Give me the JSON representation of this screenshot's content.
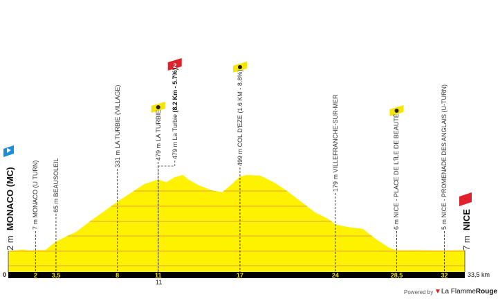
{
  "chart_data": {
    "type": "area",
    "xunit": "km",
    "xlim": [
      0,
      33.5
    ],
    "x_end_label": "33,5 km",
    "y_zero_label": "0",
    "ticks": [
      {
        "km": 2,
        "label": "2"
      },
      {
        "km": 3.5,
        "label": "3,5"
      },
      {
        "km": 8,
        "label": "8"
      },
      {
        "km": 11,
        "label": "11"
      },
      {
        "km": 17,
        "label": "17"
      },
      {
        "km": 24,
        "label": "24"
      },
      {
        "km": 28.5,
        "label": "28,5"
      },
      {
        "km": 32,
        "label": "32"
      }
    ],
    "sub_tick": {
      "km": 11,
      "label": "11"
    },
    "profile": [
      [
        0,
        2
      ],
      [
        0.5,
        5
      ],
      [
        1,
        10
      ],
      [
        1.5,
        5
      ],
      [
        2,
        7
      ],
      [
        2.7,
        7
      ],
      [
        3.5,
        65
      ],
      [
        4.5,
        110
      ],
      [
        5,
        130
      ],
      [
        6,
        200
      ],
      [
        7,
        265
      ],
      [
        8,
        331
      ],
      [
        9,
        390
      ],
      [
        10,
        450
      ],
      [
        11,
        479
      ],
      [
        11.6,
        462
      ],
      [
        12.2,
        495
      ],
      [
        12.8,
        510
      ],
      [
        13.2,
        480
      ],
      [
        14,
        440
      ],
      [
        15,
        405
      ],
      [
        15.7,
        395
      ],
      [
        16.3,
        440
      ],
      [
        17,
        499
      ],
      [
        17.5,
        510
      ],
      [
        18.5,
        505
      ],
      [
        19.5,
        460
      ],
      [
        20.5,
        400
      ],
      [
        21.5,
        330
      ],
      [
        22.5,
        260
      ],
      [
        23.5,
        215
      ],
      [
        24,
        179
      ],
      [
        25,
        160
      ],
      [
        26,
        150
      ],
      [
        27,
        80
      ],
      [
        28,
        20
      ],
      [
        28.5,
        6
      ],
      [
        30,
        7
      ],
      [
        31,
        5
      ],
      [
        32,
        5
      ],
      [
        33.5,
        7
      ]
    ],
    "start": {
      "name": "MONACO (MC)",
      "elev": "2 m",
      "color": "#1a8fd8"
    },
    "finish": {
      "name": "NICE",
      "elev": "7 m",
      "color": "#e0202b"
    },
    "markers": [
      {
        "km": 2,
        "text": "7 m MONACO (U TURN)"
      },
      {
        "km": 3.5,
        "text": "65 m BEAUSOLEIL"
      },
      {
        "km": 8,
        "text": "331 m LA TURBIE (VILLAGE)"
      },
      {
        "km": 11,
        "text": "479 m LA TURBIE",
        "icon": "sprint-stopwatch-icon"
      },
      {
        "km": 11,
        "text": "479 m La Turbie ",
        "bold": "(8.2 Km - 5.7%)",
        "icon": "climb-category-2",
        "badge": "2",
        "offset": true
      },
      {
        "km": 17,
        "text": "499 m COL D'EZE (1.6 KM - 8.8%)",
        "icon": "sprint-stopwatch-icon"
      },
      {
        "km": 24,
        "text": "179 m VILLEFRANCHE-SUR-MER"
      },
      {
        "km": 28.5,
        "text": "6 m NICE - PLACE DE L'ÎLE DE BEAUTÉ",
        "icon": "sprint-stopwatch-icon"
      },
      {
        "km": 32,
        "text": "5 m NICE - PROMENADE DES ANGLAIS (U-TURN)"
      }
    ],
    "colors": {
      "fill": "#fff200",
      "grid": "#e8a23a",
      "axis": "#000000",
      "climb": "#e0202b"
    }
  },
  "footer": {
    "powered": "Powered by",
    "brand_a": "La Flamme",
    "brand_b": "Rouge"
  }
}
